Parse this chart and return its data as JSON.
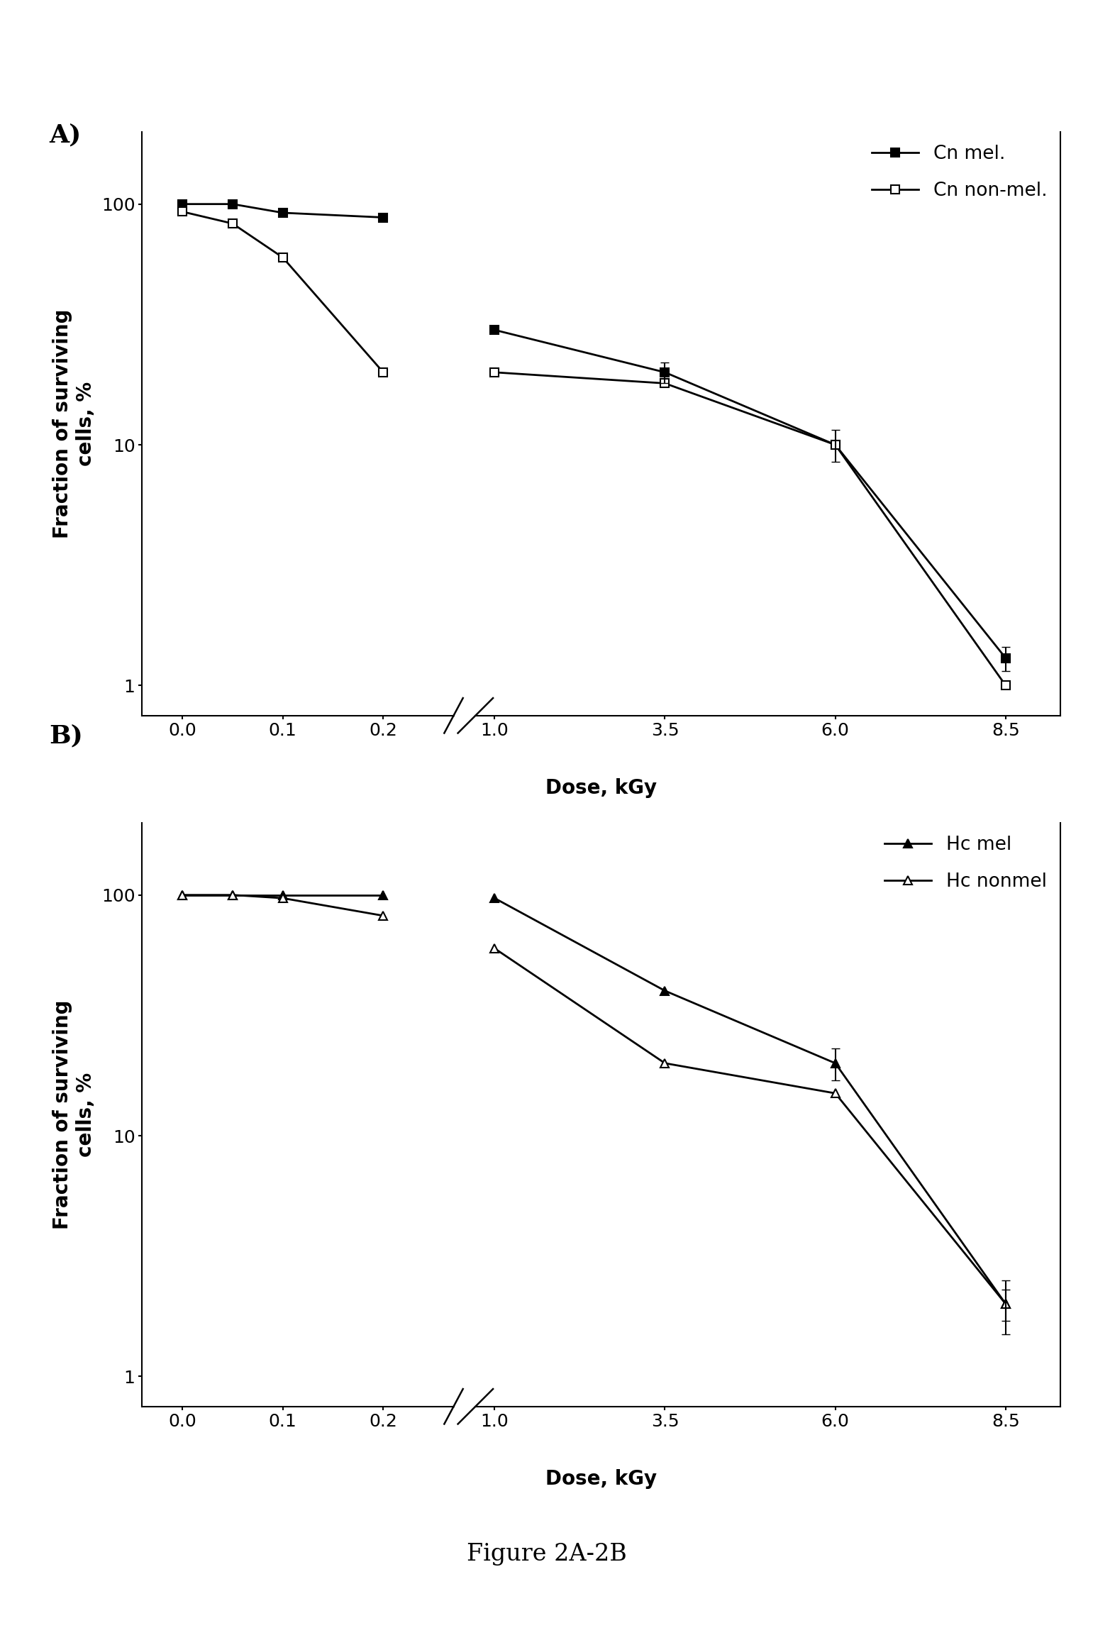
{
  "panel_A": {
    "label": "A)",
    "series": [
      {
        "name": "Cn mel.",
        "x": [
          0.0,
          0.05,
          0.1,
          0.2,
          1.0,
          3.5,
          6.0,
          8.5
        ],
        "y": [
          100,
          100,
          92,
          88,
          30,
          20,
          10,
          1.3
        ],
        "yerr": [
          0,
          0,
          0,
          0,
          0,
          2.0,
          1.5,
          0.15
        ],
        "marker": "s",
        "fillstyle": "full",
        "color": "black",
        "linestyle": "-",
        "linewidth": 2.0,
        "markersize": 9
      },
      {
        "name": "Cn non-mel.",
        "x": [
          0.0,
          0.05,
          0.1,
          0.2,
          1.0,
          3.5,
          6.0,
          8.5
        ],
        "y": [
          93,
          83,
          60,
          20,
          20,
          18,
          10,
          1.0
        ],
        "yerr": [
          0,
          0,
          0,
          0,
          0,
          0,
          0,
          0
        ],
        "marker": "s",
        "fillstyle": "none",
        "color": "black",
        "linestyle": "-",
        "linewidth": 2.0,
        "markersize": 9
      }
    ],
    "xlabel": "Dose, kGy",
    "ylabel": "Fraction of surviving\ncells, %",
    "ytick_positions": [
      1,
      10,
      100
    ],
    "ytick_labels": [
      "1",
      "10",
      "100"
    ],
    "ylim": [
      0.75,
      200
    ]
  },
  "panel_B": {
    "label": "B)",
    "series": [
      {
        "name": "Hc mel",
        "x": [
          0.0,
          0.05,
          0.1,
          0.2,
          1.0,
          3.5,
          6.0,
          8.5
        ],
        "y": [
          100,
          100,
          100,
          100,
          97,
          40,
          20,
          2.0
        ],
        "yerr": [
          0,
          0,
          0,
          0,
          0,
          0,
          3.0,
          0.3
        ],
        "marker": "^",
        "fillstyle": "full",
        "color": "black",
        "linestyle": "-",
        "linewidth": 2.0,
        "markersize": 9
      },
      {
        "name": "Hc nonmel",
        "x": [
          0.0,
          0.05,
          0.1,
          0.2,
          1.0,
          3.5,
          6.0,
          8.5
        ],
        "y": [
          100,
          100,
          97,
          82,
          60,
          20,
          15,
          2.0
        ],
        "yerr": [
          0,
          0,
          0,
          0,
          0,
          0,
          0,
          0.5
        ],
        "marker": "^",
        "fillstyle": "none",
        "color": "black",
        "linestyle": "-",
        "linewidth": 2.0,
        "markersize": 9
      }
    ],
    "xlabel": "Dose, kGy",
    "ylabel": "Fraction of surviving\ncells, %",
    "ytick_positions": [
      1,
      10,
      100
    ],
    "ytick_labels": [
      "1",
      "10",
      "100"
    ],
    "ylim": [
      0.75,
      200
    ]
  },
  "figure_caption": "Figure 2A-2B",
  "figure_fontsize": 22,
  "label_fontsize": 20,
  "tick_fontsize": 18,
  "legend_fontsize": 19,
  "background_color": "#ffffff"
}
